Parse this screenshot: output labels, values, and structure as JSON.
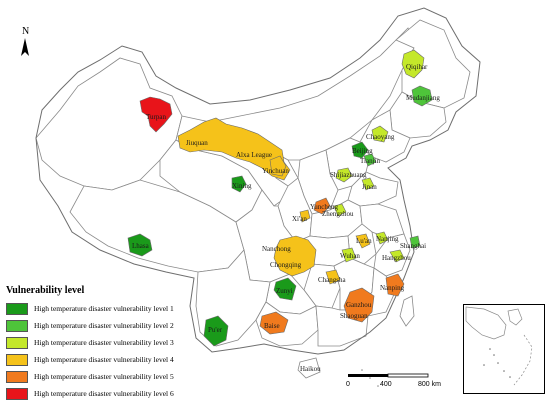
{
  "legend": {
    "title": "Vulnerability level",
    "items": [
      {
        "label": "High temperature disaster vulnerability level 1",
        "color": "#1a9a1a"
      },
      {
        "label": "High temperature disaster vulnerability level 2",
        "color": "#4ec43a"
      },
      {
        "label": "High temperature disaster vulnerability level 3",
        "color": "#c4e82a"
      },
      {
        "label": "High temperature disaster vulnerability level 4",
        "color": "#f5c21a"
      },
      {
        "label": "High temperature disaster vulnerability level 5",
        "color": "#f07a1e"
      },
      {
        "label": "High temperature disaster vulnerability level 6",
        "color": "#e8141a"
      }
    ]
  },
  "cities": {
    "turpan": "Turpan",
    "jiuquan": "Jiuquan",
    "alxa": "Alxa League",
    "yinchuan": "Yinchuan",
    "xining": "Xining",
    "lhasa": "Lhasa",
    "qiqihar": "Qiqihar",
    "mudanjiang": "Mudanjiang",
    "chaoyang": "Chaoyang",
    "beijing": "Beijing",
    "tianjin": "Tianjin",
    "shijiazhuang": "Shijiazhuang",
    "jinan": "Jinan",
    "yuncheng": "Yuncheng",
    "zhengzhou": "Zhengzhou",
    "xian": "Xi'an",
    "nanchong": "Nanchong",
    "chongqing": "Chongqing",
    "zunyi": "Zunyi",
    "luan": "Lu'an",
    "nanjing": "Nanjing",
    "shanghai": "Shanghai",
    "wuhan": "Wuhan",
    "hangzhou": "Hangzhou",
    "changsha": "Changsha",
    "nanping": "Nanping",
    "ganzhou": "Ganzhou",
    "shaoguan": "Shaoguan",
    "baise": "Baise",
    "puer": "Pu'er",
    "haikou": "Haikou"
  },
  "scale": {
    "t0": "0",
    "t1": "400",
    "t2": "800 km"
  },
  "north": "N"
}
